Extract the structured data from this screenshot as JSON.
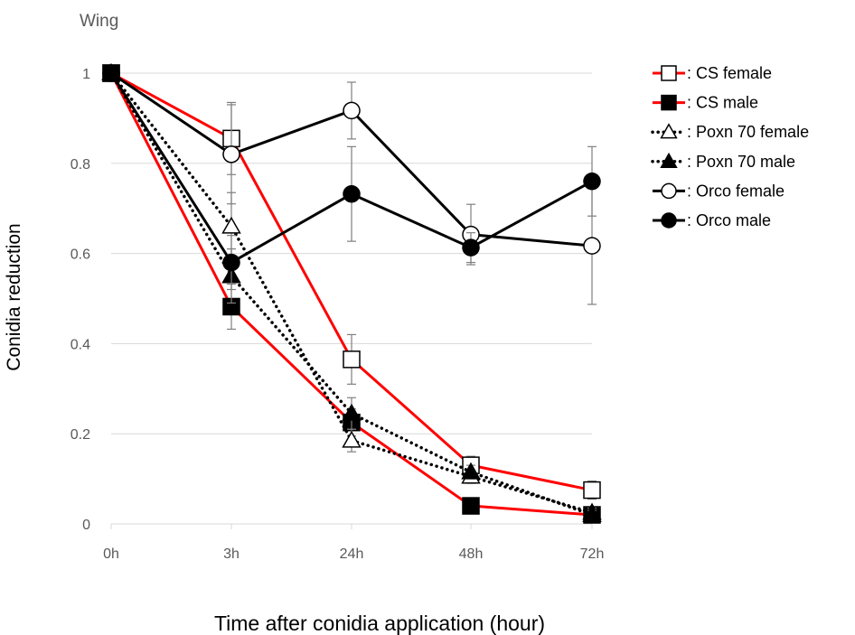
{
  "chart_data": {
    "type": "line",
    "title": "Wing",
    "xlabel": "Time after conidia application (hour)",
    "ylabel": "Conidia reduction",
    "categories": [
      "0h",
      "3h",
      "24h",
      "48h",
      "72h"
    ],
    "yticks": [
      "0",
      "0.2",
      "0.4",
      "0.6",
      "0.8",
      "1"
    ],
    "ylim": [
      0,
      1
    ],
    "grid": true,
    "legend_position": "top-right",
    "series": [
      {
        "name": ": CS female",
        "color": "#ff0000",
        "line": "solid",
        "marker": "square-open",
        "values": [
          1,
          0.855,
          0.365,
          0.13,
          0.075
        ],
        "errors": [
          0,
          0.08,
          0.055,
          0.02,
          0.02
        ]
      },
      {
        "name": ": CS male",
        "color": "#ff0000",
        "line": "solid",
        "marker": "square-filled",
        "values": [
          1,
          0.482,
          0.225,
          0.04,
          0.02
        ],
        "errors": [
          0,
          0.05,
          0.03,
          0.01,
          0.01
        ]
      },
      {
        "name": ": Poxn 70 female",
        "color": "#000000",
        "line": "dotted",
        "marker": "triangle-open",
        "values": [
          1,
          0.66,
          0.185,
          0.105,
          0.025
        ],
        "errors": [
          0,
          0.075,
          0.025,
          0.015,
          0.01
        ]
      },
      {
        "name": ": Poxn 70 male",
        "color": "#000000",
        "line": "dotted",
        "marker": "triangle-filled",
        "values": [
          1,
          0.55,
          0.245,
          0.115,
          0.02
        ],
        "errors": [
          0,
          0.06,
          0.035,
          0.015,
          0.01
        ]
      },
      {
        "name": ": Orco female",
        "color": "#000000",
        "line": "solid",
        "marker": "circle-open",
        "values": [
          1,
          0.82,
          0.917,
          0.642,
          0.617
        ],
        "errors": [
          0,
          0.11,
          0.063,
          0.067,
          0.13
        ]
      },
      {
        "name": ": Orco male",
        "color": "#000000",
        "line": "solid",
        "marker": "circle-filled",
        "values": [
          1,
          0.58,
          0.732,
          0.613,
          0.76
        ],
        "errors": [
          0,
          0.06,
          0.105,
          0.033,
          0.077
        ]
      }
    ]
  }
}
